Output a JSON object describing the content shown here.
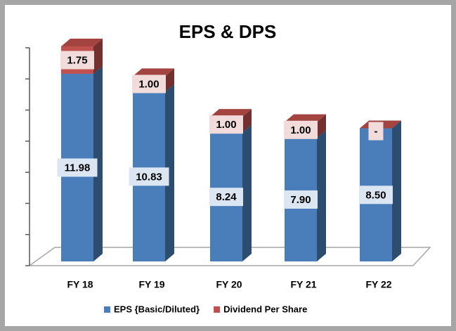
{
  "chart_data": {
    "type": "bar",
    "stacked": true,
    "title": "EPS & DPS",
    "categories": [
      "FY 18",
      "FY 19",
      "FY 20",
      "FY 21",
      "FY 22"
    ],
    "series": [
      {
        "name": "EPS {Basic/Diluted}",
        "color": "#4a7ebb",
        "label_color": "#dce6f2",
        "values": [
          11.98,
          10.83,
          8.24,
          7.9,
          8.5
        ],
        "value_labels": [
          "11.98",
          "10.83",
          "8.24",
          "7.90",
          "8.50"
        ]
      },
      {
        "name": "Dividend Per Share",
        "color": "#c0504d",
        "label_color": "#f2dcdb",
        "values": [
          1.75,
          1.0,
          1.0,
          1.0,
          0
        ],
        "value_labels": [
          "1.75",
          "1.00",
          "1.00",
          "1.00",
          "-"
        ]
      }
    ],
    "ylim": [
      0,
      14
    ],
    "yticks": [
      0,
      2,
      4,
      6,
      8,
      10,
      12,
      14
    ],
    "legend": "bottom"
  }
}
